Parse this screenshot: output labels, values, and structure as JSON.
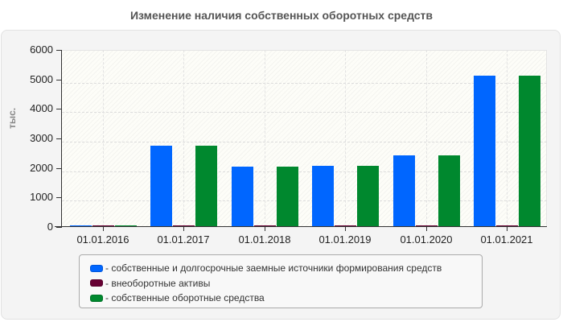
{
  "chart_data": {
    "type": "bar",
    "title": "Изменение наличия собственных оборотных средств",
    "xlabel": "",
    "ylabel": "тыс.",
    "ylim": [
      0,
      6000
    ],
    "yticks": [
      0,
      1000,
      2000,
      3000,
      4000,
      5000,
      6000
    ],
    "grid": true,
    "legend_position": "bottom",
    "categories": [
      "01.01.2016",
      "01.01.2017",
      "01.01.2018",
      "01.01.2019",
      "01.01.2020",
      "01.01.2021"
    ],
    "series": [
      {
        "name": "собственные и долгосрочные заемные источники формирования средств",
        "color": "#0066ff",
        "values": [
          30,
          2760,
          2050,
          2070,
          2430,
          5130
        ]
      },
      {
        "name": "внеоборотные активы",
        "color": "#660033",
        "values": [
          30,
          30,
          30,
          30,
          30,
          30
        ]
      },
      {
        "name": "собственные оборотные средства",
        "color": "#00882e",
        "values": [
          30,
          2760,
          2050,
          2070,
          2430,
          5130
        ]
      }
    ]
  },
  "title": "Изменение наличия собственных оборотных средств",
  "axis": {
    "y_unit": "тыс.",
    "y_ticks": [
      "0",
      "1000",
      "2000",
      "3000",
      "4000",
      "5000",
      "6000"
    ],
    "x_ticks": [
      "01.01.2016",
      "01.01.2017",
      "01.01.2018",
      "01.01.2019",
      "01.01.2020",
      "01.01.2021"
    ]
  },
  "legend": [
    {
      "label": "- собственные и долгосрочные заемные источники формирования средств",
      "color": "#0066ff"
    },
    {
      "label": "- внеоборотные активы",
      "color": "#660033"
    },
    {
      "label": "- собственные оборотные средства",
      "color": "#00882e"
    }
  ]
}
